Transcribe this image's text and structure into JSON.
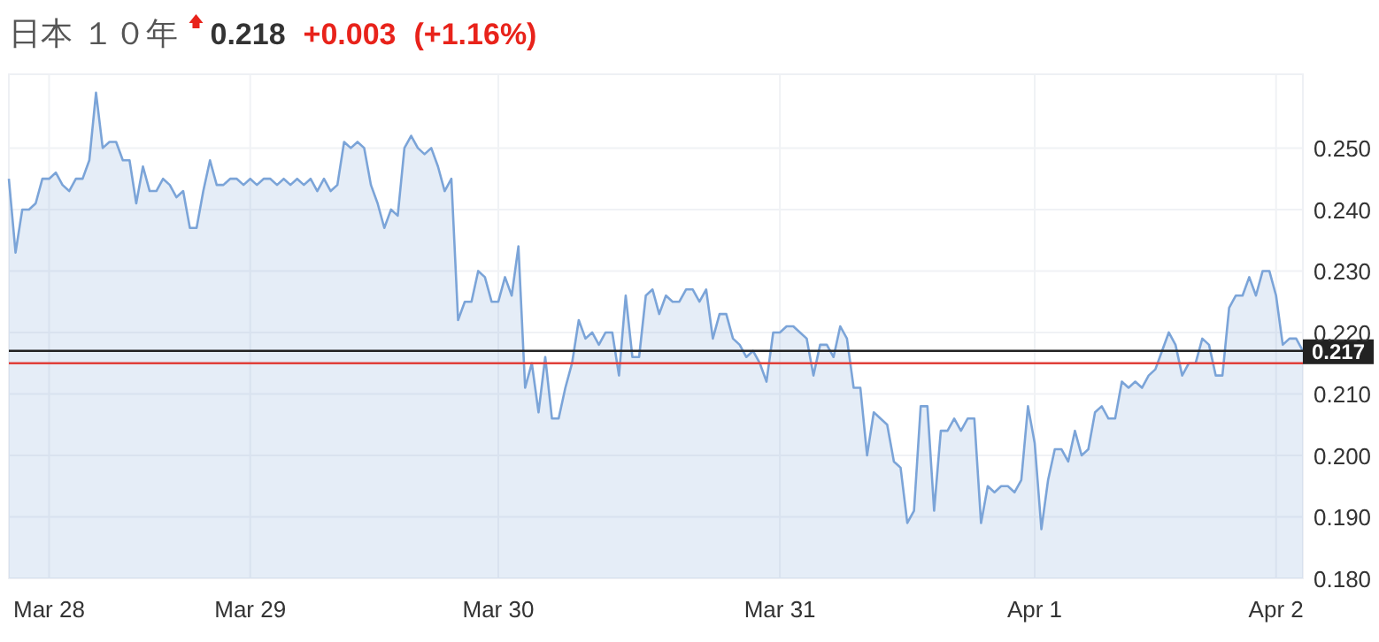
{
  "chart_data": {
    "type": "area",
    "title": "日本 １０年",
    "annotations": [
      "0.218",
      "+0.003",
      "(+1.16%)"
    ],
    "categories": [
      null,
      null,
      null,
      null,
      null,
      null,
      "Mar 28",
      null,
      null,
      null,
      null,
      null,
      null,
      null,
      null,
      null,
      null,
      null,
      null,
      null,
      null,
      null,
      null,
      null,
      null,
      null,
      null,
      null,
      null,
      null,
      null,
      null,
      null,
      null,
      null,
      null,
      "Mar 29",
      null,
      null,
      null,
      null,
      null,
      null,
      null,
      null,
      null,
      null,
      null,
      null,
      null,
      null,
      null,
      null,
      null,
      null,
      null,
      null,
      null,
      null,
      null,
      null,
      null,
      null,
      null,
      null,
      null,
      null,
      null,
      null,
      null,
      null,
      null,
      null,
      "Mar 30",
      null,
      null,
      null,
      null,
      null,
      null,
      null,
      null,
      null,
      null,
      null,
      null,
      null,
      null,
      null,
      null,
      null,
      null,
      null,
      null,
      null,
      null,
      null,
      null,
      null,
      null,
      null,
      null,
      null,
      null,
      null,
      null,
      null,
      null,
      null,
      null,
      null,
      null,
      null,
      null,
      null,
      "Mar 31",
      null,
      null,
      null,
      null,
      null,
      null,
      null,
      null,
      null,
      null,
      null,
      null,
      null,
      null,
      null,
      null,
      null,
      null,
      null,
      null,
      null,
      null,
      null,
      null,
      null,
      null,
      null,
      null,
      null,
      null,
      null,
      null,
      null,
      null,
      null,
      null,
      null,
      "Apr 1",
      null,
      null,
      null,
      null,
      null,
      null,
      null,
      null,
      null,
      null,
      null,
      null,
      null,
      null,
      null,
      null,
      null,
      null,
      null,
      null,
      null,
      null,
      null,
      null,
      null,
      null,
      null,
      null,
      null,
      null,
      null,
      null,
      null,
      null,
      null,
      "Apr 2",
      null,
      null,
      null,
      null
    ],
    "series": [
      {
        "color": "#7ba4d8",
        "values": [
          0.245,
          0.233,
          0.24,
          0.24,
          0.241,
          0.245,
          0.245,
          0.246,
          0.244,
          0.243,
          0.245,
          0.245,
          0.248,
          0.259,
          0.25,
          0.251,
          0.251,
          0.248,
          0.248,
          0.241,
          0.247,
          0.243,
          0.243,
          0.245,
          0.244,
          0.242,
          0.243,
          0.237,
          0.237,
          0.243,
          0.248,
          0.244,
          0.244,
          0.245,
          0.245,
          0.244,
          0.245,
          0.244,
          0.245,
          0.245,
          0.244,
          0.245,
          0.244,
          0.245,
          0.244,
          0.245,
          0.243,
          0.245,
          0.243,
          0.244,
          0.251,
          0.25,
          0.251,
          0.25,
          0.244,
          0.241,
          0.237,
          0.24,
          0.239,
          0.25,
          0.252,
          0.25,
          0.249,
          0.25,
          0.247,
          0.243,
          0.245,
          0.222,
          0.225,
          0.225,
          0.23,
          0.229,
          0.225,
          0.225,
          0.229,
          0.226,
          0.234,
          0.211,
          0.215,
          0.207,
          0.216,
          0.206,
          0.206,
          0.211,
          0.215,
          0.222,
          0.219,
          0.22,
          0.218,
          0.22,
          0.22,
          0.213,
          0.226,
          0.216,
          0.216,
          0.226,
          0.227,
          0.223,
          0.226,
          0.225,
          0.225,
          0.227,
          0.227,
          0.225,
          0.227,
          0.219,
          0.223,
          0.223,
          0.219,
          0.218,
          0.216,
          0.217,
          0.215,
          0.212,
          0.22,
          0.22,
          0.221,
          0.221,
          0.22,
          0.219,
          0.213,
          0.218,
          0.218,
          0.216,
          0.221,
          0.219,
          0.211,
          0.211,
          0.2,
          0.207,
          0.206,
          0.205,
          0.199,
          0.198,
          0.189,
          0.191,
          0.208,
          0.208,
          0.191,
          0.204,
          0.204,
          0.206,
          0.204,
          0.206,
          0.206,
          0.189,
          0.195,
          0.194,
          0.195,
          0.195,
          0.194,
          0.196,
          0.208,
          0.202,
          0.188,
          0.196,
          0.201,
          0.201,
          0.199,
          0.204,
          0.2,
          0.201,
          0.207,
          0.208,
          0.206,
          0.206,
          0.212,
          0.211,
          0.212,
          0.211,
          0.213,
          0.214,
          0.217,
          0.22,
          0.218,
          0.213,
          0.215,
          0.215,
          0.219,
          0.218,
          0.213,
          0.213,
          0.224,
          0.226,
          0.226,
          0.229,
          0.226,
          0.23,
          0.23,
          0.226,
          0.218,
          0.219,
          0.219,
          0.217
        ]
      }
    ],
    "ylim": [
      0.18,
      0.262
    ],
    "yticks": [
      {
        "value": 0.18,
        "label": "0.180"
      },
      {
        "value": 0.19,
        "label": "0.190"
      },
      {
        "value": 0.2,
        "label": "0.200"
      },
      {
        "value": 0.21,
        "label": "0.210"
      },
      {
        "value": 0.22,
        "label": "0.220"
      },
      {
        "value": 0.23,
        "label": "0.230"
      },
      {
        "value": 0.24,
        "label": "0.240"
      },
      {
        "value": 0.25,
        "label": "0.250"
      }
    ],
    "grid": true,
    "ref_lines": [
      {
        "axis": "y",
        "value": 0.217,
        "label": "0.217",
        "color": "#222222"
      },
      {
        "axis": "y",
        "value": 0.215,
        "color": "#e0403a"
      }
    ]
  }
}
